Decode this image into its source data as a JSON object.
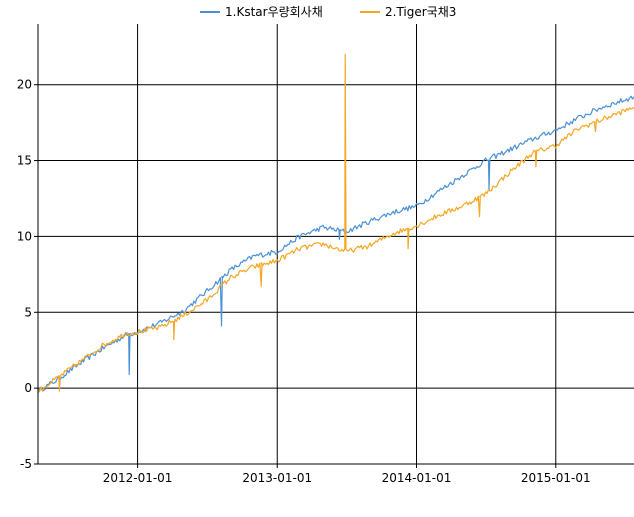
{
  "chart_data": {
    "type": "line",
    "title": "",
    "xlabel": "",
    "ylabel": "",
    "x_range": [
      "2011-04-15",
      "2015-07-25"
    ],
    "xlim": [
      "2011-04-15",
      "2015-07-25"
    ],
    "ylim": [
      -5,
      24
    ],
    "y_ticks": [
      -5,
      0,
      5,
      10,
      15,
      20
    ],
    "y_tick_labels": [
      "-5",
      "0",
      "5",
      "10",
      "15",
      "20"
    ],
    "x_ticks": [
      "2012-01-01",
      "2013-01-01",
      "2014-01-01",
      "2015-01-01"
    ],
    "x_tick_labels": [
      "2012-01-01",
      "2013-01-01",
      "2014-01-01",
      "2015-01-01"
    ],
    "grid": true,
    "legend_position": "top",
    "series": [
      {
        "name": "1.Kstar우량회사채",
        "color": "#4a90d9",
        "points": [
          [
            "2011-04-15",
            -0.2
          ],
          [
            "2011-06-01",
            0.5
          ],
          [
            "2011-08-01",
            1.6
          ],
          [
            "2011-10-01",
            2.6
          ],
          [
            "2011-12-01",
            3.5
          ],
          [
            "2012-01-01",
            3.7
          ],
          [
            "2012-03-01",
            4.3
          ],
          [
            "2012-05-01",
            5.1
          ],
          [
            "2012-07-01",
            6.4
          ],
          [
            "2012-09-01",
            7.8
          ],
          [
            "2012-11-01",
            8.7
          ],
          [
            "2013-01-01",
            9.0
          ],
          [
            "2013-03-01",
            10.0
          ],
          [
            "2013-05-01",
            10.6
          ],
          [
            "2013-07-01",
            10.3
          ],
          [
            "2013-09-01",
            11.0
          ],
          [
            "2013-11-01",
            11.6
          ],
          [
            "2014-01-01",
            12.0
          ],
          [
            "2014-03-01",
            13.0
          ],
          [
            "2014-05-01",
            14.0
          ],
          [
            "2014-07-01",
            15.0
          ],
          [
            "2014-09-01",
            15.7
          ],
          [
            "2014-11-01",
            16.4
          ],
          [
            "2015-01-01",
            17.0
          ],
          [
            "2015-03-01",
            17.8
          ],
          [
            "2015-05-01",
            18.5
          ],
          [
            "2015-07-25",
            19.2
          ]
        ],
        "spikes": [
          {
            "date": "2011-12-10",
            "value": 0.9
          },
          {
            "date": "2012-08-08",
            "value": 4.1
          },
          {
            "date": "2013-06-13",
            "value": 9.8
          },
          {
            "date": "2014-07-10",
            "value": 13.1
          }
        ]
      },
      {
        "name": "2.Tiger국채3",
        "color": "#f5a623",
        "points": [
          [
            "2011-04-15",
            -0.2
          ],
          [
            "2011-06-01",
            0.6
          ],
          [
            "2011-08-01",
            1.7
          ],
          [
            "2011-10-01",
            2.8
          ],
          [
            "2011-12-01",
            3.6
          ],
          [
            "2012-01-01",
            3.7
          ],
          [
            "2012-03-01",
            4.0
          ],
          [
            "2012-05-01",
            4.8
          ],
          [
            "2012-07-01",
            5.8
          ],
          [
            "2012-09-01",
            7.3
          ],
          [
            "2012-11-01",
            8.0
          ],
          [
            "2013-01-01",
            8.4
          ],
          [
            "2013-03-01",
            9.2
          ],
          [
            "2013-05-01",
            9.5
          ],
          [
            "2013-07-01",
            9.0
          ],
          [
            "2013-09-01",
            9.4
          ],
          [
            "2013-11-01",
            10.2
          ],
          [
            "2014-01-01",
            10.7
          ],
          [
            "2014-03-01",
            11.4
          ],
          [
            "2014-05-01",
            12.0
          ],
          [
            "2014-07-01",
            12.8
          ],
          [
            "2014-09-01",
            14.2
          ],
          [
            "2014-11-01",
            15.5
          ],
          [
            "2015-01-01",
            16.0
          ],
          [
            "2015-03-01",
            17.1
          ],
          [
            "2015-05-01",
            17.7
          ],
          [
            "2015-07-25",
            18.5
          ]
        ],
        "spikes": [
          {
            "date": "2011-06-10",
            "value": -0.2
          },
          {
            "date": "2012-04-05",
            "value": 3.2
          },
          {
            "date": "2012-11-20",
            "value": 6.7
          },
          {
            "date": "2013-06-28",
            "value": 22.0
          },
          {
            "date": "2013-12-10",
            "value": 9.2
          },
          {
            "date": "2014-06-15",
            "value": 11.3
          },
          {
            "date": "2014-11-10",
            "value": 14.6
          },
          {
            "date": "2015-04-15",
            "value": 16.9
          }
        ]
      }
    ]
  }
}
